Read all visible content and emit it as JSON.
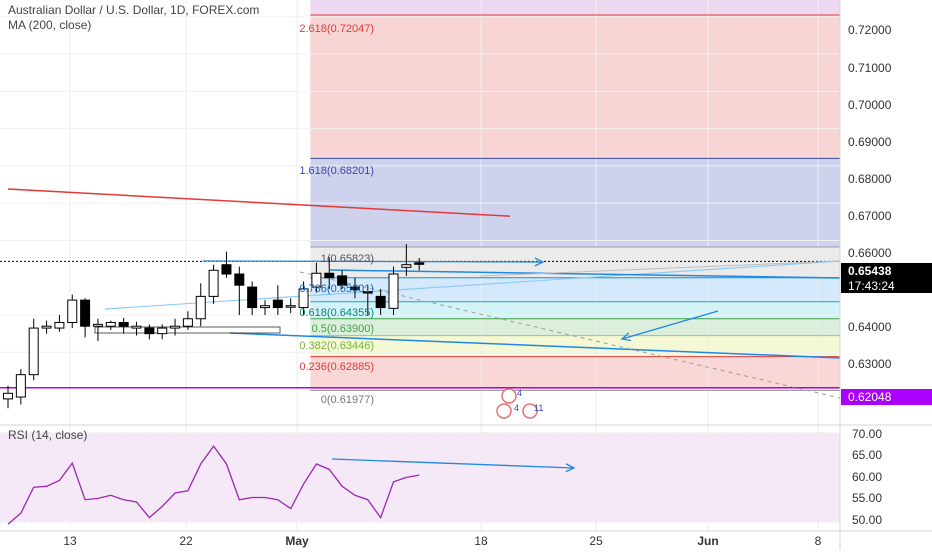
{
  "header": {
    "title": "Australian Dollar / U.S. Dollar, 1D, FOREX.com",
    "indicator": "MA (200, close)"
  },
  "rsi_panel": {
    "label": "RSI (14, close)"
  },
  "price_axis": {
    "labels": [
      "0.72000",
      "0.71000",
      "0.70000",
      "0.69000",
      "0.68000",
      "0.67000",
      "0.66000",
      "0.64000",
      "0.63000"
    ],
    "current_price": "0.65438",
    "countdown": "17:43:24",
    "level_tag": "0.62048"
  },
  "rsi_axis": {
    "labels": [
      "70.00",
      "65.00",
      "60.00",
      "55.00",
      "50.00"
    ]
  },
  "time_axis": {
    "labels": [
      "13",
      "22",
      "May",
      "18",
      "25",
      "Jun",
      "8"
    ]
  },
  "fib_labels": {
    "l2618": "2.618(0.72047)",
    "l1618": "1.618(0.68201)",
    "l1": "1(0.65823)",
    "l786": "0.786(0.65001)",
    "l618": "0.618(0.64355)",
    "l5": "0.5(0.63900)",
    "l382": "0.382(0.63446)",
    "l236": "0.236(0.62885)",
    "l0": "0(0.61977)"
  },
  "events": {
    "a": "4",
    "b": "4",
    "c": "11"
  },
  "colors": {
    "bull": "#ffffff",
    "bear": "#000000",
    "ma": "#e53935",
    "fib_blue": "#5c6bc0",
    "fib_red": "#e57373",
    "trend": "#1e88e5",
    "level": "#aa00ff",
    "rsi": "#9c27b0"
  },
  "chart_data": [
    {
      "type": "candlestick",
      "title": "Australian Dollar / U.S. Dollar, 1D, FOREX.com",
      "x": [
        "2020-04-06",
        "2020-04-07",
        "2020-04-08",
        "2020-04-09",
        "2020-04-10",
        "2020-04-13",
        "2020-04-14",
        "2020-04-15",
        "2020-04-16",
        "2020-04-17",
        "2020-04-20",
        "2020-04-21",
        "2020-04-22",
        "2020-04-23",
        "2020-04-24",
        "2020-04-27",
        "2020-04-28",
        "2020-04-29",
        "2020-04-30",
        "2020-05-01",
        "2020-05-04",
        "2020-05-05",
        "2020-05-06",
        "2020-05-07",
        "2020-05-08",
        "2020-05-11",
        "2020-05-12",
        "2020-05-13",
        "2020-05-14",
        "2020-05-15",
        "2020-05-18",
        "2020-05-19",
        "2020-05-20"
      ],
      "open": [
        0.6175,
        0.618,
        0.624,
        0.6365,
        0.6365,
        0.638,
        0.644,
        0.637,
        0.637,
        0.638,
        0.6365,
        0.6365,
        0.635,
        0.6365,
        0.637,
        0.639,
        0.645,
        0.6535,
        0.651,
        0.6475,
        0.642,
        0.644,
        0.6425,
        0.642,
        0.6475,
        0.6512,
        0.6505,
        0.6475,
        0.6463,
        0.645,
        0.6418,
        0.6528,
        0.654
      ],
      "close": [
        0.619,
        0.624,
        0.6365,
        0.637,
        0.638,
        0.644,
        0.637,
        0.6375,
        0.638,
        0.637,
        0.637,
        0.635,
        0.6365,
        0.637,
        0.639,
        0.645,
        0.652,
        0.651,
        0.648,
        0.642,
        0.6425,
        0.642,
        0.6425,
        0.647,
        0.6512,
        0.65,
        0.648,
        0.6468,
        0.646,
        0.642,
        0.651,
        0.6535,
        0.6538
      ],
      "high": [
        0.621,
        0.6255,
        0.639,
        0.6385,
        0.64,
        0.6455,
        0.6445,
        0.639,
        0.6385,
        0.6392,
        0.6382,
        0.6375,
        0.6375,
        0.639,
        0.641,
        0.6485,
        0.6535,
        0.657,
        0.653,
        0.649,
        0.644,
        0.648,
        0.6445,
        0.649,
        0.654,
        0.6555,
        0.652,
        0.65,
        0.648,
        0.647,
        0.653,
        0.659,
        0.6553
      ],
      "low": [
        0.615,
        0.616,
        0.6225,
        0.635,
        0.6355,
        0.6365,
        0.634,
        0.633,
        0.636,
        0.635,
        0.6345,
        0.6335,
        0.6335,
        0.6345,
        0.636,
        0.637,
        0.643,
        0.65,
        0.64,
        0.64,
        0.64,
        0.64,
        0.6405,
        0.64,
        0.646,
        0.647,
        0.647,
        0.6445,
        0.64,
        0.64,
        0.64,
        0.6505,
        0.652
      ],
      "ma200": {
        "x_start": "2020-04-06",
        "x_end": "2020-05-20",
        "y_start": 0.6738,
        "y_end": 0.6665
      },
      "ylim": [
        0.6105,
        0.7245
      ],
      "ticks": [
        "0.72000",
        "0.71000",
        "0.70000",
        "0.69000",
        "0.68000",
        "0.67000",
        "0.66000",
        "0.64000",
        "0.63000"
      ],
      "current_price": 0.65438,
      "horizontal_level": 0.62048,
      "fib_levels": [
        {
          "ratio": "2.618",
          "value": 0.72047
        },
        {
          "ratio": "1.618",
          "value": 0.68201
        },
        {
          "ratio": "1",
          "value": 0.65823
        },
        {
          "ratio": "0.786",
          "value": 0.65001
        },
        {
          "ratio": "0.618",
          "value": 0.64355
        },
        {
          "ratio": "0.5",
          "value": 0.639
        },
        {
          "ratio": "0.382",
          "value": 0.63446
        },
        {
          "ratio": "0.236",
          "value": 0.62885
        },
        {
          "ratio": "0",
          "value": 0.61977
        }
      ]
    },
    {
      "type": "line",
      "title": "RSI (14, close)",
      "x": [
        "2020-04-06",
        "2020-04-07",
        "2020-04-08",
        "2020-04-09",
        "2020-04-10",
        "2020-04-13",
        "2020-04-14",
        "2020-04-15",
        "2020-04-16",
        "2020-04-17",
        "2020-04-20",
        "2020-04-21",
        "2020-04-22",
        "2020-04-23",
        "2020-04-24",
        "2020-04-27",
        "2020-04-28",
        "2020-04-29",
        "2020-04-30",
        "2020-05-01",
        "2020-05-04",
        "2020-05-05",
        "2020-05-06",
        "2020-05-07",
        "2020-05-08",
        "2020-05-11",
        "2020-05-12",
        "2020-05-13",
        "2020-05-14",
        "2020-05-15",
        "2020-05-18",
        "2020-05-19",
        "2020-05-20"
      ],
      "values": [
        49.5,
        52.0,
        57.8,
        58.0,
        59.3,
        63.2,
        55.0,
        55.3,
        56.0,
        55.0,
        54.5,
        51.0,
        53.5,
        56.5,
        57.0,
        63.0,
        67.0,
        63.0,
        55.0,
        55.5,
        55.5,
        55.0,
        53.0,
        58.5,
        63.0,
        61.8,
        58.0,
        56.0,
        55.0,
        51.0,
        59.0,
        60.0,
        60.5
      ],
      "ylim": [
        48,
        71.5
      ],
      "ticks": [
        "70.00",
        "65.00",
        "60.00",
        "55.00",
        "50.00"
      ]
    }
  ]
}
